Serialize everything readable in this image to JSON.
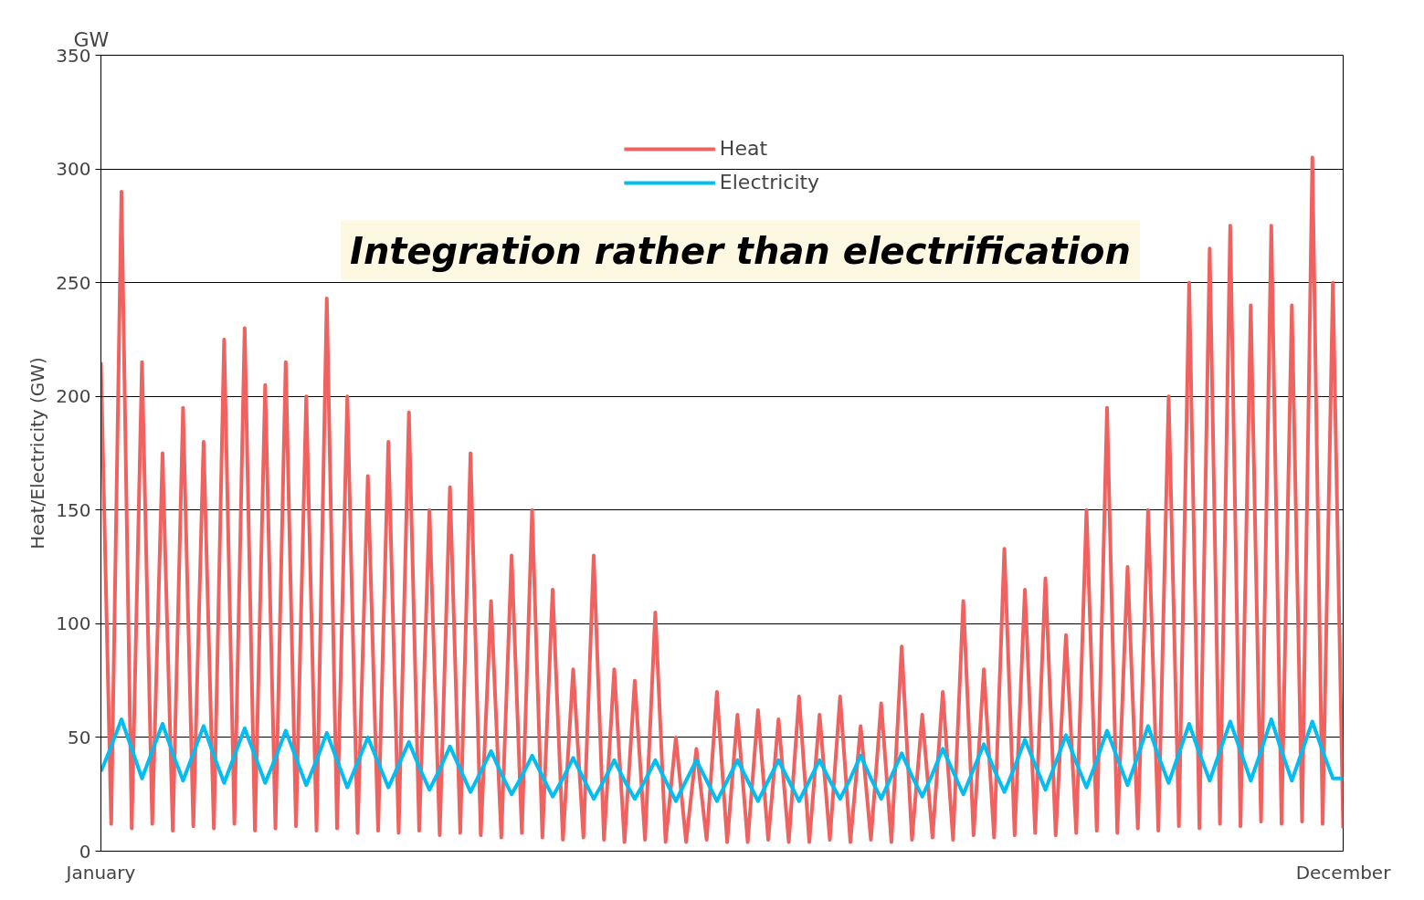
{
  "chart_data": {
    "type": "line",
    "ylabel": "Heat/Electricity (GW)",
    "annotations": [
      "GW",
      "Integration rather than electrification"
    ],
    "categories": [
      "January",
      null,
      null,
      null,
      null,
      null,
      null,
      null,
      null,
      null,
      null,
      null,
      null,
      null,
      null,
      null,
      null,
      null,
      null,
      null,
      null,
      null,
      null,
      null,
      null,
      null,
      null,
      null,
      null,
      null,
      null,
      null,
      null,
      null,
      null,
      null,
      null,
      null,
      null,
      null,
      null,
      null,
      null,
      null,
      null,
      null,
      null,
      null,
      null,
      null,
      null,
      null,
      null,
      null,
      null,
      null,
      null,
      null,
      null,
      null,
      null,
      null,
      null,
      null,
      null,
      null,
      null,
      null,
      null,
      null,
      null,
      null,
      null,
      null,
      null,
      null,
      null,
      null,
      null,
      null,
      null,
      null,
      null,
      null,
      null,
      null,
      null,
      null,
      null,
      null,
      null,
      null,
      null,
      null,
      null,
      null,
      null,
      null,
      null,
      null,
      null,
      null,
      null,
      null,
      null,
      null,
      null,
      null,
      null,
      null,
      null,
      null,
      null,
      null,
      null,
      null,
      null,
      null,
      null,
      null,
      null,
      "December"
    ],
    "ylim": [
      0,
      350
    ],
    "yticks": [
      0,
      50,
      100,
      150,
      200,
      250,
      300,
      350
    ],
    "grid": "y",
    "legend": "top",
    "line_style": "solid",
    "marker": "none",
    "series": [
      {
        "name": "Heat",
        "color": "#f0625f",
        "values": [
          215,
          12,
          290,
          10,
          215,
          12,
          175,
          9,
          195,
          11,
          180,
          10,
          225,
          12,
          230,
          9,
          205,
          10,
          215,
          11,
          200,
          9,
          243,
          10,
          200,
          8,
          165,
          9,
          180,
          8,
          193,
          9,
          150,
          7,
          160,
          8,
          175,
          7,
          110,
          6,
          130,
          8,
          150,
          6,
          115,
          5,
          80,
          6,
          130,
          5,
          80,
          4,
          75,
          5,
          105,
          4,
          50,
          4,
          45,
          5,
          70,
          4,
          60,
          4,
          62,
          5,
          58,
          4,
          68,
          4,
          60,
          5,
          68,
          4,
          55,
          5,
          65,
          4,
          90,
          5,
          60,
          6,
          70,
          5,
          110,
          7,
          80,
          6,
          133,
          7,
          115,
          8,
          120,
          7,
          95,
          8,
          150,
          9,
          195,
          8,
          125,
          10,
          150,
          9,
          200,
          11,
          250,
          10,
          265,
          12,
          275,
          11,
          240,
          13,
          275,
          12,
          240,
          13,
          305,
          12,
          250,
          10
        ]
      },
      {
        "name": "Electricity",
        "color": "#00bdf2",
        "values": [
          35,
          46,
          58,
          45,
          32,
          44,
          56,
          43,
          31,
          43,
          55,
          42,
          30,
          42,
          54,
          42,
          30,
          41,
          53,
          41,
          29,
          40,
          52,
          40,
          28,
          39,
          50,
          39,
          28,
          38,
          48,
          37,
          27,
          36,
          46,
          36,
          26,
          35,
          44,
          34,
          25,
          33,
          42,
          33,
          24,
          32,
          41,
          32,
          23,
          31,
          40,
          31,
          23,
          31,
          40,
          31,
          22,
          31,
          40,
          31,
          22,
          31,
          40,
          31,
          22,
          31,
          40,
          31,
          22,
          31,
          40,
          31,
          23,
          32,
          42,
          32,
          23,
          33,
          43,
          33,
          24,
          34,
          45,
          35,
          25,
          36,
          47,
          36,
          26,
          37,
          49,
          38,
          27,
          39,
          51,
          39,
          28,
          40,
          53,
          41,
          29,
          42,
          55,
          42,
          30,
          43,
          56,
          43,
          31,
          44,
          57,
          44,
          31,
          44,
          58,
          44,
          31,
          44,
          57,
          44,
          32,
          32
        ]
      }
    ]
  }
}
